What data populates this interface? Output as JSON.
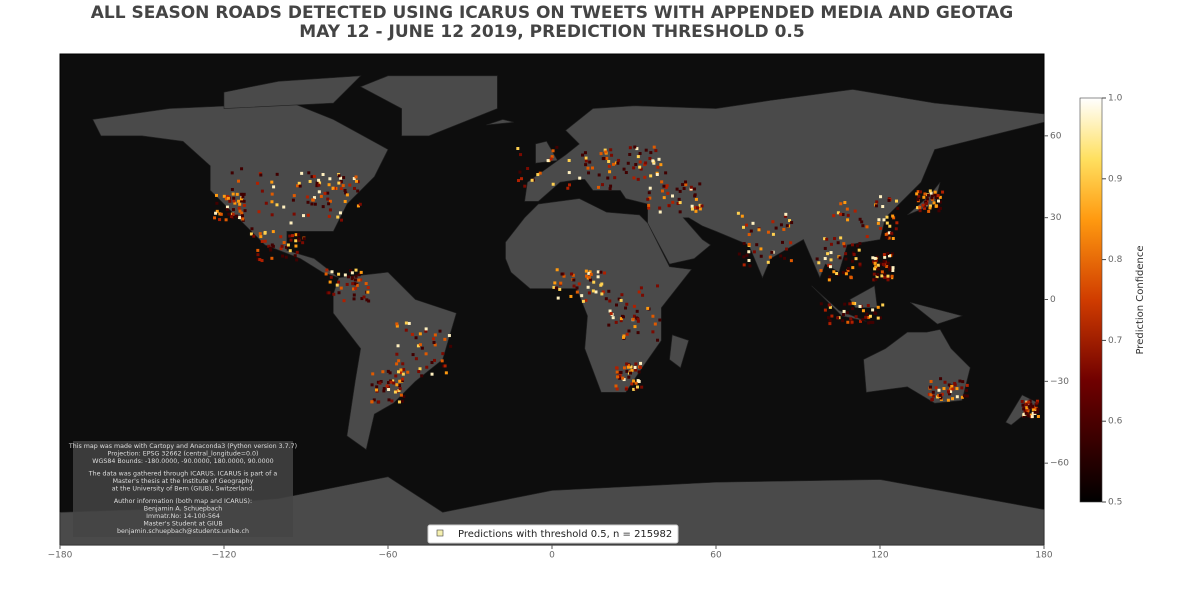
{
  "title": [
    "ALL SEASON ROADS DETECTED USING ICARUS ON TWEETS WITH APPENDED MEDIA AND GEOTAG",
    "MAY 12 - JUNE 12 2019, PREDICTION THRESHOLD 0.5"
  ],
  "map": {
    "xlim": [
      -180,
      180
    ],
    "ylim": [
      -90,
      90
    ],
    "xticks": [
      {
        "value": -180,
        "label": "−180"
      },
      {
        "value": -120,
        "label": "−120"
      },
      {
        "value": -60,
        "label": "−60"
      },
      0,
      60,
      120,
      180
    ],
    "yticks": [
      {
        "value": -60,
        "label": "−60"
      },
      {
        "value": -30,
        "label": "−30"
      },
      0,
      30,
      60
    ]
  },
  "colorbar": {
    "label": "Prediction Confidence",
    "lim": [
      0.5,
      1
    ],
    "ticks": [
      0.5,
      0.6,
      0.7,
      0.8,
      0.9,
      {
        "value": 1,
        "label": "1.0"
      }
    ]
  },
  "legend": "Predictions with threshold 0.5, n = 215982",
  "info": [
    "This map was made with Cartopy and Anaconda3 (Python version 3.7.7)",
    "Projection: EPSG 32662 (central_longitude=0.0)",
    "WGS84 Bounds: -180.0000, -90.0000, 180.0000, 90.0000",
    "The data was gathered through ICARUS. ICARUS is part of a",
    "Master's thesis at the Institute of Geography",
    "at the University of Bern (GIUB), Switzerland.",
    "Author information (both map and ICARUS):",
    "Benjamin A. Schuepbach",
    "Immatr.No: 14-100-564",
    "Master's Student at GIUB",
    "benjamin.schuepbach@students.unibe.ch"
  ]
}
